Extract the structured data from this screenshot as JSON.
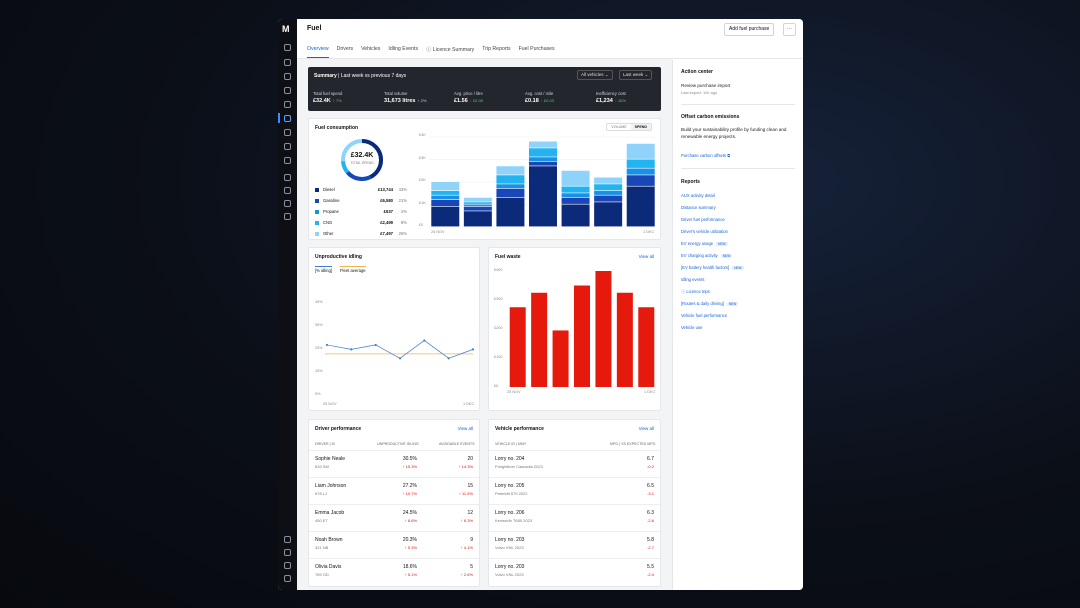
{
  "app": {
    "title": "Fuel",
    "add_button": "Add fuel purchase",
    "more_button": "⋯",
    "logo": "M"
  },
  "tabs": [
    "Overview",
    "Drivers",
    "Vehicles",
    "Idling Events",
    "ⓘ Licence Summary",
    "Trip Reports",
    "Fuel Purchases"
  ],
  "summary": {
    "label": "Summary",
    "range": "Last week vs previous 7 days",
    "filter_vehicles": "All vehicles ⌄",
    "filter_period": "Last week ⌄",
    "kpis": [
      {
        "label": "Total fuel spend",
        "value": "£32.4K",
        "delta": "↑ 7%"
      },
      {
        "label": "Total volume",
        "value": "31,673 litres",
        "delta": "↑ 2%"
      },
      {
        "label": "Avg. price / litre",
        "value": "£1.56",
        "delta": "↓ £0.05"
      },
      {
        "label": "Avg. cost / mile",
        "value": "£0.18",
        "delta": "↓ £0.03"
      },
      {
        "label": "Inefficiency cost",
        "value": "£1,234",
        "delta": "↓ 15%"
      }
    ]
  },
  "consumption": {
    "title": "Fuel consumption",
    "toggle_volume": "VOLUME",
    "toggle_spend": "SPEND",
    "donut_value": "£32.4K",
    "donut_label": "TOTAL SPEND",
    "legend": [
      {
        "name": "Diesel",
        "amount": "£13,744",
        "pct": "43%",
        "color": "#0b2a7a"
      },
      {
        "name": "Gasoline",
        "amount": "£6,580",
        "pct": "21%",
        "color": "#1a47b8"
      },
      {
        "name": "Propane",
        "amount": "£637",
        "pct": "2%",
        "color": "#1891e6"
      },
      {
        "name": "CNG",
        "amount": "£2,499",
        "pct": "8%",
        "color": "#22b4f0"
      },
      {
        "name": "Other",
        "amount": "£7,497",
        "pct": "26%",
        "color": "#8fd3fa"
      }
    ],
    "y_ticks": [
      "£4K",
      "£3K",
      "£2K",
      "£1K",
      "£0"
    ],
    "x_start": "25 NOV",
    "x_end": "1 DEC"
  },
  "chart_data": [
    {
      "type": "bar",
      "title": "Fuel consumption",
      "stacked": true,
      "categories": [
        "25 NOV",
        "26 NOV",
        "27 NOV",
        "28 NOV",
        "29 NOV",
        "30 NOV",
        "1 DEC"
      ],
      "ylim": [
        0,
        4000
      ],
      "series": [
        {
          "name": "Diesel",
          "values": [
            900,
            700,
            1300,
            2700,
            1000,
            1100,
            1800
          ]
        },
        {
          "name": "Gasoline",
          "values": [
            300,
            200,
            400,
            200,
            300,
            300,
            500
          ]
        },
        {
          "name": "Propane",
          "values": [
            200,
            100,
            200,
            200,
            200,
            200,
            300
          ]
        },
        {
          "name": "CNG",
          "values": [
            200,
            100,
            400,
            400,
            300,
            300,
            400
          ]
        },
        {
          "name": "Other",
          "values": [
            400,
            200,
            400,
            300,
            700,
            300,
            700
          ]
        }
      ]
    },
    {
      "type": "line",
      "title": "Unproductive idling",
      "categories": [
        "25 NOV",
        "26 NOV",
        "27 NOV",
        "28 NOV",
        "29 NOV",
        "30 NOV",
        "1 DEC"
      ],
      "ylim": [
        0,
        45
      ],
      "series": [
        {
          "name": "[% idling]",
          "values": [
            27,
            25,
            27,
            21,
            29,
            21,
            25
          ]
        },
        {
          "name": "Fleet average",
          "values": [
            23,
            23,
            23,
            23,
            23,
            23,
            23
          ]
        }
      ]
    },
    {
      "type": "bar",
      "title": "Fuel waste",
      "categories": [
        "25 NOV",
        "26 NOV",
        "27 NOV",
        "28 NOV",
        "29 NOV",
        "30 NOV",
        "1 DEC"
      ],
      "ylim": [
        0,
        400
      ],
      "series": [
        {
          "name": "Fuel waste",
          "values": [
            275,
            325,
            195,
            350,
            400,
            325,
            275
          ]
        }
      ]
    }
  ],
  "idling": {
    "title": "Unproductive idling",
    "legend_a": "[% idling]",
    "legend_b": "Fleet average",
    "y_ticks": [
      "45%",
      "35%",
      "25%",
      "15%",
      "5%"
    ],
    "x_start": "25 NOV",
    "x_end": "1 DEC"
  },
  "waste": {
    "title": "Fuel waste",
    "view_all": "View all",
    "y_ticks": [
      "£400",
      "£300",
      "£200",
      "£100",
      "£0"
    ],
    "x_start": "25 NOV",
    "x_end": "1 DEC"
  },
  "drivers": {
    "title": "Driver performance",
    "view_all": "View all",
    "col1": "DRIVER | ID",
    "col2": "UNPRODUCTIVE IDLING",
    "col3": "AVOIDABLE EVENTS",
    "rows": [
      {
        "name": "Sophie Neale",
        "id": "633 SM",
        "v1": "30.5%",
        "d1": "↑ 15.3%",
        "v2": "20",
        "d2": "↑ 14.3%"
      },
      {
        "name": "Liam Johnson",
        "id": "678 LJ",
        "v1": "27.2%",
        "d1": "↑ 10.7%",
        "v2": "15",
        "d2": "↑ 11.5%"
      },
      {
        "name": "Emma Jacob",
        "id": "450 ET",
        "v1": "24.5%",
        "d1": "↑ 8.6%",
        "v2": "12",
        "d2": "↑ 6.3%"
      },
      {
        "name": "Noah Brown",
        "id": "321 NB",
        "v1": "20.3%",
        "d1": "↑ 5.3%",
        "v2": "9",
        "d2": "↑ 4.1%"
      },
      {
        "name": "Olivia Davis",
        "id": "789 OD",
        "v1": "18.6%",
        "d1": "↑ 5.1%",
        "v2": "5",
        "d2": "↑ 2.6%"
      }
    ]
  },
  "vehicles": {
    "title": "Vehicle performance",
    "view_all": "View all",
    "col1": "VEHICLE ID | MMY",
    "col2": "MPG | VS EXPECTED MPG",
    "rows": [
      {
        "name": "Lorry no. 204",
        "sub": "Freightliner Cascadia 2023",
        "v": "6.7",
        "d": "-0.2"
      },
      {
        "name": "Lorry no. 205",
        "sub": "Peterbilt 579 2022",
        "v": "6.5",
        "d": "-3.1"
      },
      {
        "name": "Lorry no. 206",
        "sub": "Kenworth T680 2023",
        "v": "6.3",
        "d": "-2.6"
      },
      {
        "name": "Lorry no. 203",
        "sub": "Volvo VNL 2023",
        "v": "5.8",
        "d": "-2.7"
      },
      {
        "name": "Lorry no. 203",
        "sub": "Volvo VNL 2023",
        "v": "5.5",
        "d": "-2.4"
      }
    ]
  },
  "action_center": {
    "title": "Action center",
    "item": "Review purchase import",
    "item_sub": "Last import: 11h ago"
  },
  "carbon": {
    "title": "Offset carbon emissions",
    "text": "Build your sustainability profile by funding clean and renewable energy projects.",
    "link": "Purchase carbon offsets ⧉"
  },
  "reports": {
    "title": "Reports",
    "items": [
      {
        "label": "AUX activity detail",
        "new": ""
      },
      {
        "label": "Distance summary",
        "new": ""
      },
      {
        "label": "Driver fuel performance",
        "new": ""
      },
      {
        "label": "Driver's vehicle utilization",
        "new": ""
      },
      {
        "label": "EV energy usage",
        "new": "NEW"
      },
      {
        "label": "EV charging activity",
        "new": "NEW"
      },
      {
        "label": "[EV battery health factors]",
        "new": "NEW"
      },
      {
        "label": "Idling events",
        "new": ""
      },
      {
        "label": "ⓘ Licence trips",
        "new": ""
      },
      {
        "label": "[Routes & daily driving]",
        "new": "NEW"
      },
      {
        "label": "Vehicle fuel performance",
        "new": ""
      },
      {
        "label": "Vehicle use",
        "new": ""
      }
    ]
  }
}
